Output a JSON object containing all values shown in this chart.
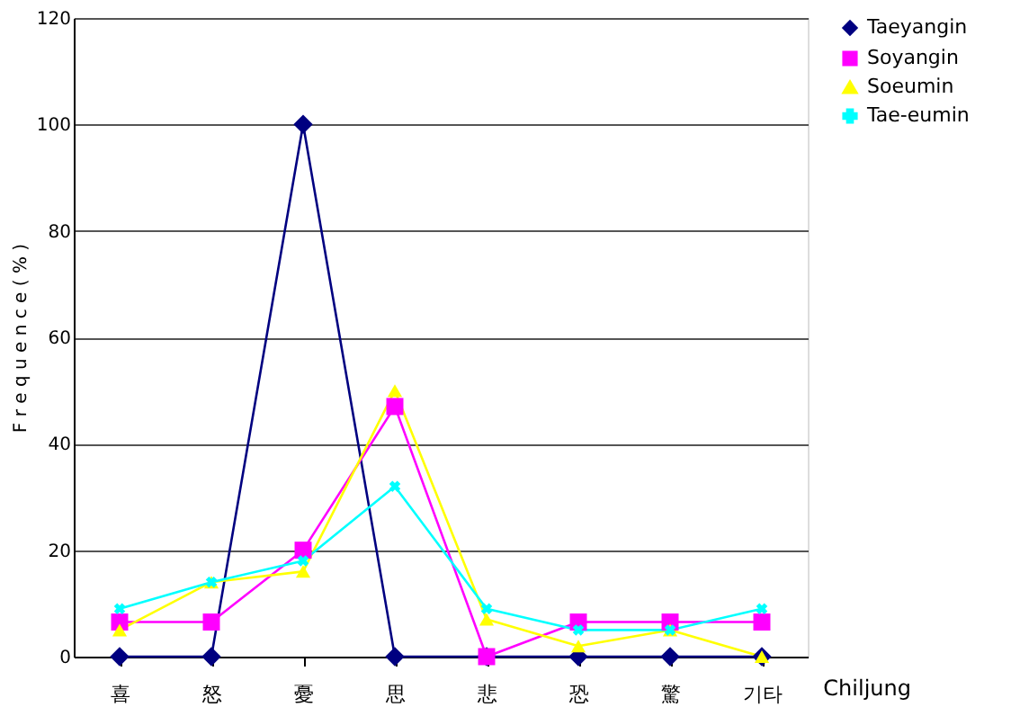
{
  "chart_data": {
    "type": "line",
    "xlabel": "Chiljung",
    "ylabel": "F r e q u e n c e ( % )",
    "categories": [
      "喜",
      "怒",
      "憂",
      "思",
      "悲",
      "恐",
      "驚",
      "기타"
    ],
    "series": [
      {
        "name": "Taeyangin",
        "color": "#000080",
        "marker": "diamond",
        "values": [
          0,
          0,
          100,
          0,
          0,
          0,
          0,
          0
        ]
      },
      {
        "name": "Soyangin",
        "color": "#ff00ff",
        "marker": "square",
        "values": [
          6.5,
          6.5,
          20,
          47,
          0,
          6.5,
          6.5,
          6.5
        ]
      },
      {
        "name": "Soeumin",
        "color": "#ffff00",
        "marker": "triangle",
        "values": [
          5,
          14,
          16,
          50,
          7,
          2,
          5,
          0
        ]
      },
      {
        "name": "Tae-eumin",
        "color": "#00ffff",
        "marker": "cross",
        "values": [
          9,
          14,
          18,
          32,
          9,
          5,
          5,
          9
        ]
      }
    ],
    "ylim": [
      0,
      120
    ],
    "yticks": [
      0,
      20,
      40,
      60,
      80,
      100,
      120
    ],
    "grid": "y",
    "legend": "top right",
    "line_style": "solid"
  }
}
